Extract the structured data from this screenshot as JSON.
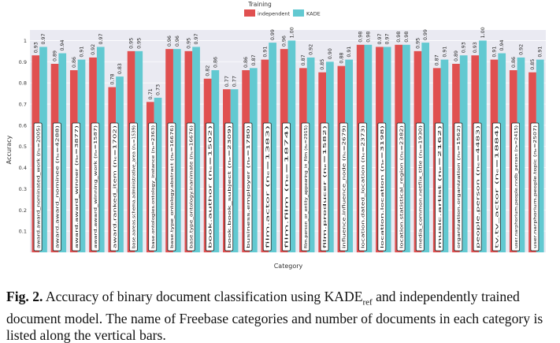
{
  "chart_data": {
    "type": "bar",
    "title": "",
    "xlabel": "Category",
    "ylabel": "Accuracy",
    "ylim": [
      0,
      1.05
    ],
    "yticks": [
      "0.1",
      "0.2",
      "0.3",
      "0.4",
      "0.5",
      "0.6",
      "0.7",
      "0.8",
      "0.9",
      "1"
    ],
    "legend": {
      "title": "Training",
      "placement": "top-center"
    },
    "grid": true,
    "colors": {
      "independent": "#e05050",
      "kade": "#62c9d1"
    },
    "categories": [
      "award.award_nominated_work (nₑ=2005)",
      "award.award_nominee (nₑ=4288)",
      "award.award_winner (nₑ=3877)",
      "award.award_winning_work (nₑ=1587)",
      "award.ranked_item (nₑ=1702)",
      "base.aareas.schema.administrative_area (nₑ=1539)",
      "base.ontologies.ontology_instance (nₑ=2363)",
      "base.type_ontology.abstract (nₑ=16676)",
      "base.type_ontology.inanimate (nₑ=16676)",
      "book.author (nₑ=1502)",
      "book.book_subject (nₑ=2309)",
      "business.employer (nₑ=1780)",
      "film.actor (nₑ=1383)",
      "film.film (nₑ=1874)",
      "film.person_or_entity_appearing_in_film (nₑ=2915)",
      "film.producer (nₑ=1582)",
      "influence.influence_node (nₑ=2679)",
      "location.dated_location (nₑ=2373)",
      "location.location (nₑ=3198)",
      "location.statistical_region (nₑ=2382)",
      "media_common.netflix_title (nₑ=1930)",
      "music.artist (nₑ=2162)",
      "organization.organization (nₑ=1562)",
      "people.person (nₑ=4483)",
      "tv.tv_actor (nₑ=1884)",
      "user.narphorium.people.nndb_person (nₑ=2415)",
      "user.narphorium.people.topic (nₑ=2507)"
    ],
    "series": [
      {
        "name": "independent",
        "values": [
          0.93,
          0.89,
          0.86,
          0.92,
          0.78,
          0.95,
          0.71,
          0.96,
          0.95,
          0.82,
          0.77,
          0.86,
          0.91,
          0.96,
          0.87,
          0.85,
          0.88,
          0.98,
          0.97,
          0.98,
          0.95,
          0.87,
          0.89,
          0.93,
          0.91,
          0.86,
          0.85
        ],
        "labels": [
          "0.93",
          "0.89",
          "0.86",
          "0.92",
          "0.78",
          "0.95",
          "0.71",
          "0.96",
          "0.95",
          "0.82",
          "0.77",
          "0.86",
          "0.91",
          "0.96",
          "0.87",
          "0.85",
          "0.88",
          "0.98",
          "0.97",
          "0.98",
          "0.95",
          "0.87",
          "0.89",
          "0.93",
          "0.91",
          "0.86",
          "0.85"
        ]
      },
      {
        "name": "KADE",
        "values": [
          0.97,
          0.94,
          0.91,
          0.97,
          0.83,
          0.95,
          0.73,
          0.96,
          0.97,
          0.86,
          0.77,
          0.87,
          0.99,
          1.0,
          0.92,
          0.9,
          0.91,
          0.98,
          0.97,
          0.98,
          0.99,
          0.91,
          0.93,
          1.0,
          0.94,
          0.92,
          0.91
        ],
        "labels": [
          "0.97",
          "0.94",
          "0.91",
          "0.97",
          "0.83",
          "0.95",
          "0.73",
          "0.96",
          "0.97",
          "0.86",
          "0.77",
          "0.87",
          "0.99",
          "1.00",
          "0.92",
          "0.90",
          "0.91",
          "0.98",
          "0.97",
          "0.98",
          "0.99",
          "0.91",
          "0.93",
          "1.00",
          "0.94",
          "0.92",
          "0.91"
        ]
      }
    ]
  },
  "caption": {
    "fig_label": "Fig. 2.",
    "text_before_sub": "Accuracy of binary document classification using KADE",
    "subscript": "ref",
    "text_after_sub": "and independently trained document model. The name of Freebase categories and number of documents in each category is listed along the vertical bars."
  }
}
